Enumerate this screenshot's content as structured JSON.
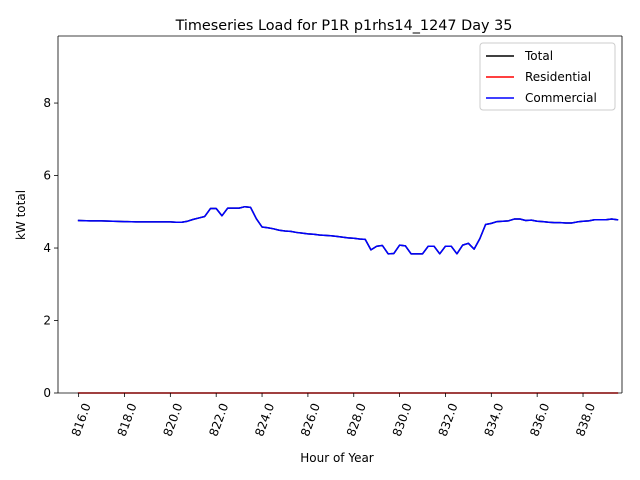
{
  "chart_data": {
    "type": "line",
    "title": "Timeseries Load for P1R p1rhs14_1247  Day 35",
    "xlabel": "Hour of Year",
    "ylabel": "kW total",
    "xlim": [
      815.1,
      839.7
    ],
    "ylim": [
      0,
      9.85
    ],
    "x_ticks": [
      816,
      818,
      820,
      822,
      824,
      826,
      828,
      830,
      832,
      834,
      836,
      838
    ],
    "x_tick_labels": [
      "816.0",
      "818.0",
      "820.0",
      "822.0",
      "824.0",
      "826.0",
      "828.0",
      "830.0",
      "832.0",
      "834.0",
      "836.0",
      "838.0"
    ],
    "y_ticks": [
      0,
      2,
      4,
      6,
      8
    ],
    "y_tick_labels": [
      "0",
      "2",
      "4",
      "6",
      "8"
    ],
    "grid": false,
    "legend_position": "top-right",
    "series": [
      {
        "name": "Total",
        "color": "#000000",
        "x": [
          816,
          816.5,
          817,
          817.5,
          818,
          818.5,
          819,
          819.5,
          820,
          820.25,
          820.5,
          820.75,
          821,
          821.25,
          821.5,
          821.75,
          822,
          822.25,
          822.5,
          822.75,
          823,
          823.25,
          823.5,
          823.75,
          824,
          824.25,
          824.5,
          824.75,
          825,
          825.25,
          825.5,
          825.75,
          826,
          826.25,
          826.5,
          826.75,
          827,
          827.25,
          827.5,
          827.75,
          828,
          828.25,
          828.5,
          828.75,
          829,
          829.25,
          829.5,
          829.75,
          830,
          830.25,
          830.5,
          830.75,
          831,
          831.25,
          831.5,
          831.75,
          832,
          832.25,
          832.5,
          832.75,
          833,
          833.25,
          833.5,
          833.75,
          834,
          834.25,
          834.5,
          834.75,
          835,
          835.25,
          835.5,
          835.75,
          836,
          836.25,
          836.5,
          836.75,
          837,
          837.25,
          837.5,
          837.75,
          838,
          838.25,
          838.5,
          838.75,
          839,
          839.25,
          839.5
        ],
        "values": [
          4.76,
          4.75,
          4.75,
          4.74,
          4.73,
          4.72,
          4.72,
          4.72,
          4.72,
          4.71,
          4.71,
          4.74,
          4.79,
          4.83,
          4.87,
          5.09,
          5.09,
          4.89,
          5.1,
          5.1,
          5.1,
          5.14,
          5.12,
          4.81,
          4.58,
          4.56,
          4.53,
          4.49,
          4.47,
          4.46,
          4.43,
          4.41,
          4.39,
          4.38,
          4.36,
          4.35,
          4.34,
          4.32,
          4.3,
          4.28,
          4.27,
          4.25,
          4.24,
          3.95,
          4.05,
          4.07,
          3.84,
          3.85,
          4.08,
          4.06,
          3.84,
          3.84,
          3.84,
          4.05,
          4.05,
          3.84,
          4.05,
          4.05,
          3.84,
          4.08,
          4.13,
          3.97,
          4.26,
          4.65,
          4.68,
          4.73,
          4.74,
          4.75,
          4.8,
          4.8,
          4.76,
          4.77,
          4.74,
          4.73,
          4.71,
          4.7,
          4.7,
          4.69,
          4.69,
          4.72,
          4.74,
          4.75,
          4.78,
          4.78,
          4.78,
          4.8,
          4.78
        ]
      },
      {
        "name": "Residential",
        "color": "#ff0000",
        "x": [
          816,
          839.5
        ],
        "values": [
          0,
          0
        ]
      },
      {
        "name": "Commercial",
        "color": "#0000ff",
        "x": [
          816,
          816.5,
          817,
          817.5,
          818,
          818.5,
          819,
          819.5,
          820,
          820.25,
          820.5,
          820.75,
          821,
          821.25,
          821.5,
          821.75,
          822,
          822.25,
          822.5,
          822.75,
          823,
          823.25,
          823.5,
          823.75,
          824,
          824.25,
          824.5,
          824.75,
          825,
          825.25,
          825.5,
          825.75,
          826,
          826.25,
          826.5,
          826.75,
          827,
          827.25,
          827.5,
          827.75,
          828,
          828.25,
          828.5,
          828.75,
          829,
          829.25,
          829.5,
          829.75,
          830,
          830.25,
          830.5,
          830.75,
          831,
          831.25,
          831.5,
          831.75,
          832,
          832.25,
          832.5,
          832.75,
          833,
          833.25,
          833.5,
          833.75,
          834,
          834.25,
          834.5,
          834.75,
          835,
          835.25,
          835.5,
          835.75,
          836,
          836.25,
          836.5,
          836.75,
          837,
          837.25,
          837.5,
          837.75,
          838,
          838.25,
          838.5,
          838.75,
          839,
          839.25,
          839.5
        ],
        "values": [
          4.76,
          4.75,
          4.75,
          4.74,
          4.73,
          4.72,
          4.72,
          4.72,
          4.72,
          4.71,
          4.71,
          4.74,
          4.79,
          4.83,
          4.87,
          5.09,
          5.09,
          4.89,
          5.1,
          5.1,
          5.1,
          5.14,
          5.12,
          4.81,
          4.58,
          4.56,
          4.53,
          4.49,
          4.47,
          4.46,
          4.43,
          4.41,
          4.39,
          4.38,
          4.36,
          4.35,
          4.34,
          4.32,
          4.3,
          4.28,
          4.27,
          4.25,
          4.24,
          3.95,
          4.05,
          4.07,
          3.84,
          3.85,
          4.08,
          4.06,
          3.84,
          3.84,
          3.84,
          4.05,
          4.05,
          3.84,
          4.05,
          4.05,
          3.84,
          4.08,
          4.13,
          3.97,
          4.26,
          4.65,
          4.68,
          4.73,
          4.74,
          4.75,
          4.8,
          4.8,
          4.76,
          4.77,
          4.74,
          4.73,
          4.71,
          4.7,
          4.7,
          4.69,
          4.69,
          4.72,
          4.74,
          4.75,
          4.78,
          4.78,
          4.78,
          4.8,
          4.78
        ]
      }
    ]
  }
}
